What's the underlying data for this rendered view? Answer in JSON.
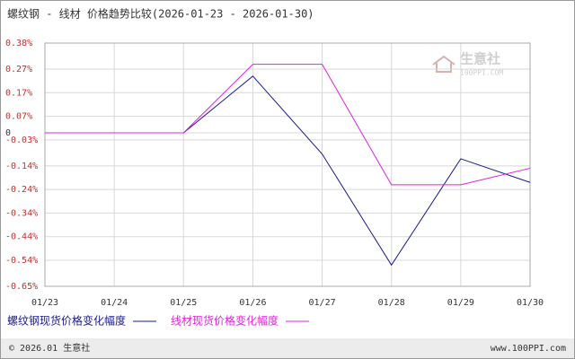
{
  "chart_data": {
    "type": "line",
    "title": "螺纹钢 - 线材 价格趋势比较(2026-01-23 - 2026-01-30)",
    "categories": [
      "01/23",
      "01/24",
      "01/25",
      "01/26",
      "01/27",
      "01/28",
      "01/29",
      "01/30"
    ],
    "series": [
      {
        "name": "螺纹钢现货价格变化幅度",
        "color": "#1a1a8c",
        "values": [
          0,
          0,
          0,
          0.24,
          -0.09,
          -0.56,
          -0.11,
          -0.21
        ]
      },
      {
        "name": "线材现货价格变化幅度",
        "color": "#e020e0",
        "values": [
          0,
          0,
          0,
          0.29,
          0.29,
          -0.22,
          -0.22,
          -0.15
        ]
      }
    ],
    "ylim": [
      -0.65,
      0.38
    ],
    "yticks": [
      {
        "value": 0.38,
        "label": "0.38%"
      },
      {
        "value": 0.27,
        "label": "0.27%"
      },
      {
        "value": 0.17,
        "label": "0.17%"
      },
      {
        "value": 0.07,
        "label": "0.07%"
      },
      0,
      {
        "value": -0.03,
        "label": "-0.03%"
      },
      {
        "value": -0.14,
        "label": "-0.14%"
      },
      {
        "value": -0.24,
        "label": "-0.24%"
      },
      {
        "value": -0.34,
        "label": "-0.34%"
      },
      {
        "value": -0.44,
        "label": "-0.44%"
      },
      {
        "value": -0.54,
        "label": "-0.54%"
      },
      {
        "value": -0.65,
        "label": "-0.65%"
      }
    ],
    "grid": true,
    "watermark": {
      "text": "生意社",
      "sub": "100PPI.COM"
    }
  },
  "footer": {
    "left": "© 2026.01 生意社",
    "right": "www.100PPI.com"
  }
}
